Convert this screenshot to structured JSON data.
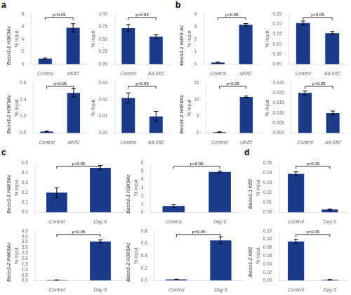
{
  "chart_data": [
    {
      "type": "bar",
      "panel": "a",
      "title": "Becn1-1 H3K9Ac",
      "ylabel": "% Input",
      "annotations": [
        "p<0.05"
      ],
      "color": "#1a3a8a",
      "categories": [
        "Control",
        "siKlf2"
      ],
      "values": [
        0.9,
        5.8
      ],
      "errors": [
        0.12,
        0.65
      ],
      "ylim": [
        0,
        8
      ],
      "yticks": [
        0,
        2,
        4,
        6,
        8
      ]
    },
    {
      "type": "bar",
      "ylabel": "% Input",
      "annotations": [
        "p<0.05"
      ],
      "color": "#1a3a8a",
      "categories": [
        "Control",
        "Ad-Klf2"
      ],
      "values": [
        0.72,
        0.55
      ],
      "errors": [
        0.07,
        0.04
      ],
      "ylim": [
        0,
        1.0
      ],
      "yticks": [
        {
          "value": 0,
          "label": "0.00"
        },
        {
          "value": 0.25,
          "label": "0.25"
        },
        {
          "value": 0.5,
          "label": "0.50"
        },
        {
          "value": 0.75,
          "label": "0.75"
        },
        {
          "value": 1.0,
          "label": "1.00"
        }
      ]
    },
    {
      "type": "bar",
      "title": "Becn1-2 H3K9Ac",
      "ylabel": "% Input",
      "annotations": [
        "p<0.05"
      ],
      "color": "#1a3a8a",
      "categories": [
        "Control",
        "siKlf2"
      ],
      "values": [
        0.02,
        0.48
      ],
      "errors": [
        0.005,
        0.05
      ],
      "ylim": [
        0,
        0.6
      ],
      "yticks": [
        {
          "value": 0,
          "label": "0.0"
        },
        {
          "value": 0.2,
          "label": "0.2"
        },
        {
          "value": 0.4,
          "label": "0.4"
        },
        {
          "value": 0.6,
          "label": "0.6"
        }
      ]
    },
    {
      "type": "bar",
      "ylabel": "% Input",
      "annotations": [
        "p<0.05"
      ],
      "color": "#1a3a8a",
      "categories": [
        "Control",
        "Ad-Klf2"
      ],
      "values": [
        0.021,
        0.01
      ],
      "errors": [
        0.003,
        0.003
      ],
      "ylim": [
        0,
        0.03
      ],
      "yticks": [
        {
          "value": 0,
          "label": "0.00"
        },
        {
          "value": 0.01,
          "label": "0.01"
        },
        {
          "value": 0.02,
          "label": "0.02"
        },
        {
          "value": 0.03,
          "label": "0.03"
        }
      ]
    },
    {
      "type": "bar",
      "panel": "b",
      "title": "Becn1-1 H4K8 Ac",
      "ylabel": "% Input",
      "annotations": [
        "p<0.05"
      ],
      "color": "#1a3a8a",
      "categories": [
        "Control",
        "siKlf2"
      ],
      "values": [
        0.15,
        3.15
      ],
      "errors": [
        0.04,
        0.09
      ],
      "ylim": [
        0,
        4
      ],
      "yticks": [
        0,
        1,
        2,
        3,
        4
      ]
    },
    {
      "type": "bar",
      "ylabel": "% Input",
      "annotations": [
        "p<0.05"
      ],
      "color": "#1a3a8a",
      "categories": [
        "Control",
        "Ad-Klf2"
      ],
      "values": [
        0.205,
        0.155
      ],
      "errors": [
        0.01,
        0.008
      ],
      "ylim": [
        0,
        0.25
      ],
      "yticks": [
        {
          "value": 0,
          "label": "0.00"
        },
        {
          "value": 0.05,
          "label": "0.05"
        },
        {
          "value": 0.1,
          "label": "0.10"
        },
        {
          "value": 0.15,
          "label": "0.15"
        },
        {
          "value": 0.2,
          "label": "0.20"
        },
        {
          "value": 0.25,
          "label": "0.25"
        }
      ]
    },
    {
      "type": "bar",
      "title": "Becn1-2 H4K8Ac",
      "ylabel": "% Input",
      "annotations": [
        "p<0.05"
      ],
      "color": "#1a3a8a",
      "categories": [
        "Control",
        "siKlf2"
      ],
      "values": [
        0.3,
        10.8
      ],
      "errors": [
        0.1,
        0.25
      ],
      "ylim": [
        0,
        15
      ],
      "yticks": [
        0,
        5,
        10,
        15
      ]
    },
    {
      "type": "bar",
      "ylabel": "% Input",
      "annotations": [
        "p<0.05"
      ],
      "color": "#1a3a8a",
      "categories": [
        "Control",
        "Ad-Klf2"
      ],
      "values": [
        0.02,
        0.01
      ],
      "errors": [
        0.001,
        0.001
      ],
      "ylim": [
        0,
        0.025
      ],
      "yticks": [
        {
          "value": 0,
          "label": "0.000"
        },
        {
          "value": 0.005,
          "label": "0.005"
        },
        {
          "value": 0.01,
          "label": "0.010"
        },
        {
          "value": 0.015,
          "label": "0.015"
        },
        {
          "value": 0.02,
          "label": "0.020"
        },
        {
          "value": 0.025,
          "label": "0.025"
        }
      ]
    },
    {
      "type": "bar",
      "panel": "c",
      "title": "Becn1-1 H4K8Ac",
      "ylabel": "% Input",
      "annotations": [
        "p<0.05"
      ],
      "color": "#1a3a8a",
      "categories": [
        "Control",
        "Day 6"
      ],
      "values": [
        0.2,
        0.45
      ],
      "errors": [
        0.05,
        0.025
      ],
      "ylim": [
        0,
        0.5
      ],
      "yticks": [
        {
          "value": 0,
          "label": "0.0"
        },
        {
          "value": 0.1,
          "label": "0.1"
        },
        {
          "value": 0.2,
          "label": "0.2"
        },
        {
          "value": 0.3,
          "label": "0.3"
        },
        {
          "value": 0.4,
          "label": "0.4"
        },
        {
          "value": 0.5,
          "label": "0.5"
        }
      ]
    },
    {
      "type": "bar",
      "title": "Becn1-1 H3K9Ac",
      "ylabel": "% Input",
      "annotations": [
        "p<0.05"
      ],
      "color": "#1a3a8a",
      "categories": [
        "Control",
        "Day 6"
      ],
      "values": [
        0.8,
        4.9
      ],
      "errors": [
        0.15,
        0.12
      ],
      "ylim": [
        0,
        6
      ],
      "yticks": [
        0,
        1,
        2,
        3,
        4,
        5,
        6
      ]
    },
    {
      "type": "bar",
      "title": "Becn1-2 H4K8Ac",
      "ylabel": "% Input",
      "annotations": [
        "p<0.05"
      ],
      "color": "#1a3a8a",
      "categories": [
        "Control",
        "Day 6"
      ],
      "values": [
        0.05,
        3.55
      ],
      "errors": [
        0.01,
        0.14
      ],
      "ylim": [
        0,
        4.5
      ],
      "yticks": [
        {
          "value": 0,
          "label": "0.0"
        },
        {
          "value": 0.5,
          "label": "0.5"
        },
        {
          "value": 1.0,
          "label": "1.0"
        },
        {
          "value": 1.5,
          "label": "1.5"
        },
        {
          "value": 2.0,
          "label": "2.0"
        },
        {
          "value": 2.5,
          "label": "2.5"
        },
        {
          "value": 3.0,
          "label": "3.0"
        },
        {
          "value": 3.5,
          "label": "3.5"
        },
        {
          "value": 4.0,
          "label": "4.0"
        },
        {
          "value": 4.5,
          "label": "4.5"
        }
      ]
    },
    {
      "type": "bar",
      "title": "Becn1-2 H3K9Ac",
      "ylabel": "% Input",
      "annotations": [
        "p<0.05"
      ],
      "color": "#1a3a8a",
      "categories": [
        "Control",
        "Day 6"
      ],
      "values": [
        0.02,
        0.65
      ],
      "errors": [
        0.005,
        0.055
      ],
      "ylim": [
        0,
        0.8
      ],
      "yticks": [
        {
          "value": 0,
          "label": "0.0"
        },
        {
          "value": 0.2,
          "label": "0.2"
        },
        {
          "value": 0.4,
          "label": "0.4"
        },
        {
          "value": 0.6,
          "label": "0.6"
        },
        {
          "value": 0.8,
          "label": "0.8"
        }
      ]
    },
    {
      "type": "bar",
      "panel": "d",
      "title": "Becn1-1 Klf2",
      "ylabel": "% Input",
      "annotations": [
        "p<0.05"
      ],
      "color": "#1a3a8a",
      "categories": [
        "Control",
        "Day 6"
      ],
      "values": [
        0.039,
        0.003
      ],
      "errors": [
        0.002,
        0.0005
      ],
      "ylim": [
        0,
        0.05
      ],
      "yticks": [
        {
          "value": 0,
          "label": "0.00"
        },
        {
          "value": 0.01,
          "label": "0.01"
        },
        {
          "value": 0.02,
          "label": "0.02"
        },
        {
          "value": 0.03,
          "label": "0.03"
        },
        {
          "value": 0.04,
          "label": "0.04"
        },
        {
          "value": 0.05,
          "label": "0.05"
        }
      ]
    },
    {
      "type": "bar",
      "title": "Becn1-2 Klf2",
      "ylabel": "% Input",
      "annotations": [
        "p<0.05"
      ],
      "color": "#1a3a8a",
      "categories": [
        "Control",
        "Day 6"
      ],
      "values": [
        0.095,
        0.002
      ],
      "errors": [
        0.005,
        0.001
      ],
      "ylim": [
        0,
        0.12
      ],
      "yticks": [
        {
          "value": 0,
          "label": "0.00"
        },
        {
          "value": 0.02,
          "label": "0.02"
        },
        {
          "value": 0.04,
          "label": "0.04"
        },
        {
          "value": 0.06,
          "label": "0.06"
        },
        {
          "value": 0.08,
          "label": "0.08"
        },
        {
          "value": 0.1,
          "label": "0.10"
        },
        {
          "value": 0.12,
          "label": "0.12"
        }
      ]
    }
  ]
}
